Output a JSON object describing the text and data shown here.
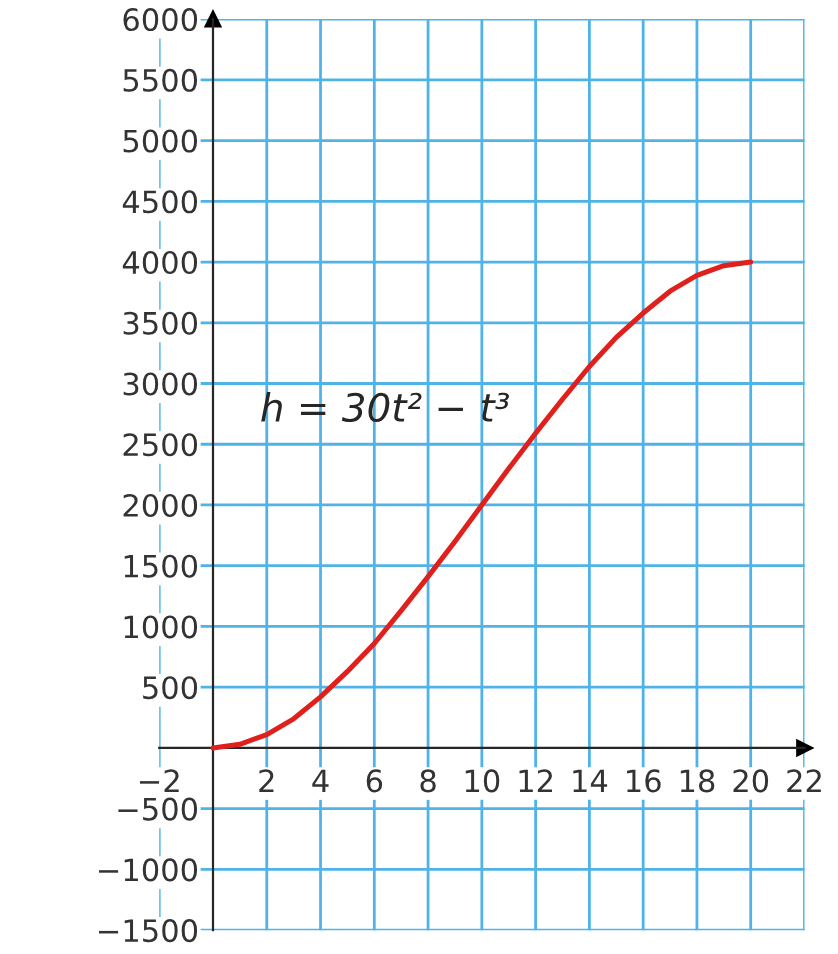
{
  "chart_data": {
    "type": "line",
    "x": [
      0,
      1,
      2,
      3,
      4,
      5,
      6,
      7,
      8,
      9,
      10,
      11,
      12,
      13,
      14,
      15,
      16,
      17,
      18,
      19,
      20
    ],
    "series": [
      {
        "color": "#e0201c",
        "values": [
          0,
          30,
          110,
          240,
          420,
          630,
          860,
          1130,
          1410,
          1700,
          2000,
          2300,
          2590,
          2870,
          3140,
          3380,
          3580,
          3760,
          3890,
          3970,
          4000
        ]
      }
    ],
    "xlim": [
      -2,
      22
    ],
    "ylim": [
      -1500,
      6000
    ],
    "xticks": [
      {
        "value": -2,
        "label": "−2"
      },
      2,
      4,
      6,
      8,
      10,
      12,
      14,
      16,
      18,
      20,
      22
    ],
    "yticks": [
      {
        "value": -1500,
        "label": "−1500"
      },
      {
        "value": -1000,
        "label": "−1000"
      },
      {
        "value": -500,
        "label": "−500"
      },
      500,
      1000,
      1500,
      2000,
      2500,
      3000,
      3500,
      4000,
      4500,
      5000,
      5500,
      6000
    ],
    "grid": true,
    "marker": "none",
    "line_style": "solid",
    "annotations": [
      "h = 30t² − t³"
    ]
  }
}
